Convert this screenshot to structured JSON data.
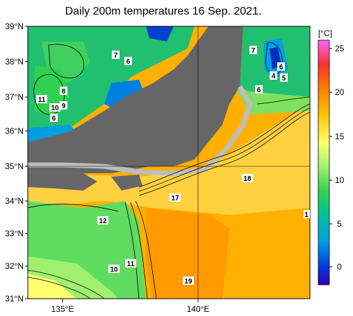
{
  "title": "Daily 200m temperatures 16 Sep. 2021.",
  "map": {
    "lat_labels": [
      "39°N",
      "38°N",
      "37°N",
      "36°N",
      "35°N",
      "34°N",
      "33°N",
      "32°N",
      "31°N"
    ],
    "lon_labels": [
      "135°E",
      "140°E"
    ],
    "land_color": "#666666",
    "shelf_color": "#bdbdbd"
  },
  "colorbar": {
    "unit": "[°C]",
    "ticks": [
      "25",
      "20",
      "15",
      "10",
      "5",
      "0"
    ],
    "stops": [
      "#ff66ff",
      "#ff3030",
      "#ff8000",
      "#ffc000",
      "#ffff70",
      "#a0f070",
      "#30d050",
      "#00c0a0",
      "#00a0e0",
      "#0040e0",
      "#3000b0"
    ]
  },
  "contour_labels": [
    {
      "text": "7",
      "name": "contour-label-7-sea-of-japan-west"
    },
    {
      "text": "6",
      "name": "contour-label-6-sea-of-japan-west"
    },
    {
      "text": "11",
      "name": "contour-label-11-oki"
    },
    {
      "text": "8",
      "name": "contour-label-8-oki"
    },
    {
      "text": "10",
      "name": "contour-label-10-oki"
    },
    {
      "text": "9",
      "name": "contour-label-9-oki"
    },
    {
      "text": "6",
      "name": "contour-label-6-wakasa"
    },
    {
      "text": "7",
      "name": "contour-label-7-northeast"
    },
    {
      "text": "6",
      "name": "contour-label-6-northeast"
    },
    {
      "text": "4",
      "name": "contour-label-4-northeast"
    },
    {
      "text": "5",
      "name": "contour-label-5-northeast"
    },
    {
      "text": "6",
      "name": "contour-label-6-sanriku"
    },
    {
      "text": "18",
      "name": "contour-label-18-kuroshio"
    },
    {
      "text": "17",
      "name": "contour-label-17-izu"
    },
    {
      "text": "12",
      "name": "contour-label-12-shikoku"
    },
    {
      "text": "1",
      "name": "contour-label-1-east-edge"
    },
    {
      "text": "10",
      "name": "contour-label-10-south"
    },
    {
      "text": "11",
      "name": "contour-label-11-south"
    },
    {
      "text": "19",
      "name": "contour-label-19-south"
    }
  ]
}
